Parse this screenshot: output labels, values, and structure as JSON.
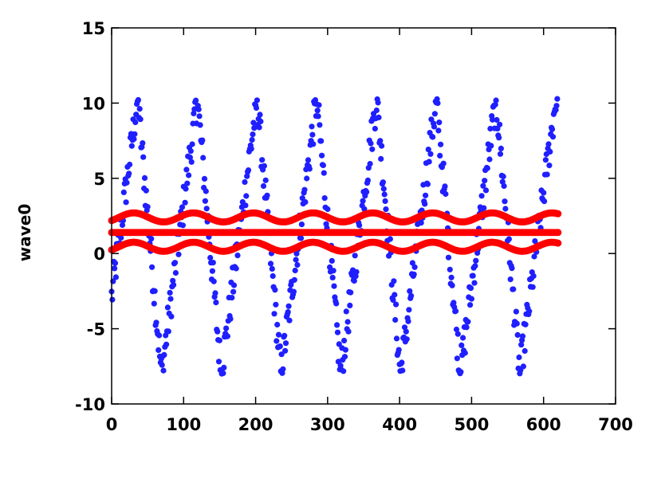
{
  "chart_data": {
    "type": "scatter",
    "title": "",
    "xlabel": "",
    "ylabel": "wave0",
    "xlim": [
      0,
      700
    ],
    "ylim": [
      -10,
      15
    ],
    "xticks": [
      "0",
      "100",
      "200",
      "300",
      "400",
      "500",
      "600",
      "700"
    ],
    "yticks": [
      "-10",
      "-5",
      "0",
      "5",
      "10",
      "15"
    ],
    "grid": false,
    "legend": "none",
    "x_range_of_data": [
      0,
      620
    ],
    "series": [
      {
        "kind": "scatter",
        "color": "#1f1fff",
        "period": 83,
        "min": -8,
        "max": 10.3,
        "shape": "sawtooth",
        "n_points": 620
      },
      {
        "kind": "band-upper",
        "color": "#ff0000",
        "center": 2.4,
        "amplitude": 0.3,
        "period": 83,
        "n_points": 620
      },
      {
        "kind": "mean-line",
        "color": "#ff0000",
        "value": 1.4,
        "n_points": 620
      },
      {
        "kind": "band-lower",
        "color": "#ff0000",
        "center": 0.45,
        "amplitude": 0.3,
        "period": 83,
        "n_points": 620
      }
    ]
  }
}
